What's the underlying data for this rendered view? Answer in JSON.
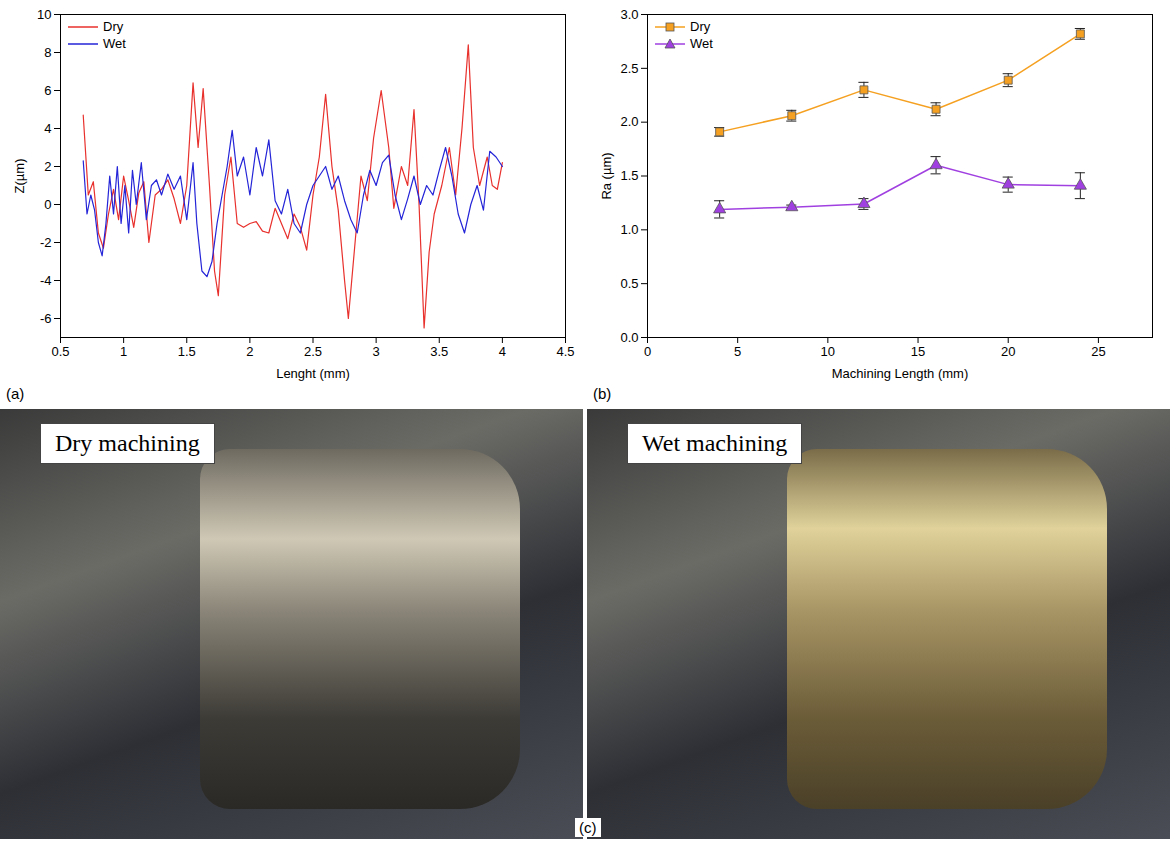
{
  "chart_data": [
    {
      "type": "line",
      "panel_label": "(a)",
      "x_label": "Lenght (mm)",
      "y_label": "Z(µm)",
      "xlim": [
        0.5,
        4.5
      ],
      "xticks": [
        0.5,
        1.0,
        1.5,
        2.0,
        2.5,
        3.0,
        3.5,
        4.0,
        4.5
      ],
      "ylim": [
        -7,
        10
      ],
      "yticks": [
        -6,
        -4,
        -2,
        0,
        2,
        4,
        6,
        8,
        10
      ],
      "grid": false,
      "legend": "top-left",
      "series": [
        {
          "name": "Dry",
          "color": "#e8302c",
          "x": [
            0.68,
            0.72,
            0.76,
            0.8,
            0.84,
            0.88,
            0.92,
            0.96,
            1.0,
            1.04,
            1.08,
            1.12,
            1.16,
            1.2,
            1.25,
            1.3,
            1.35,
            1.4,
            1.45,
            1.5,
            1.55,
            1.59,
            1.63,
            1.68,
            1.72,
            1.75,
            1.8,
            1.85,
            1.9,
            1.95,
            2.0,
            2.05,
            2.1,
            2.15,
            2.2,
            2.25,
            2.3,
            2.35,
            2.4,
            2.45,
            2.5,
            2.55,
            2.6,
            2.65,
            2.7,
            2.75,
            2.78,
            2.82,
            2.88,
            2.93,
            2.98,
            3.04,
            3.1,
            3.14,
            3.2,
            3.25,
            3.3,
            3.34,
            3.38,
            3.42,
            3.46,
            3.52,
            3.58,
            3.63,
            3.68,
            3.73,
            3.77,
            3.82,
            3.88,
            3.92,
            3.96,
            4.0
          ],
          "values": [
            4.7,
            0.5,
            1.2,
            -1.5,
            -2.3,
            -0.5,
            0.8,
            -0.8,
            1.5,
            0.2,
            -1.2,
            0.6,
            1.2,
            -2.0,
            0.5,
            0.8,
            1.3,
            0.3,
            -1.0,
            1.0,
            6.4,
            3.0,
            6.1,
            1.0,
            -3.5,
            -4.8,
            0.5,
            2.5,
            -1.0,
            -1.2,
            -1.0,
            -0.9,
            -1.4,
            -1.5,
            -0.2,
            -1.0,
            -1.8,
            -0.5,
            -1.2,
            -2.4,
            0.5,
            2.5,
            5.8,
            2.0,
            -0.3,
            -4.0,
            -6.0,
            -3.0,
            1.5,
            0.2,
            3.5,
            6.0,
            3.0,
            -0.2,
            2.0,
            1.0,
            5.0,
            0.0,
            -6.5,
            -2.5,
            -0.5,
            1.0,
            3.0,
            0.5,
            4.0,
            8.4,
            3.0,
            1.0,
            2.5,
            1.0,
            0.8,
            2.2
          ]
        },
        {
          "name": "Wet",
          "color": "#2424d8",
          "x": [
            0.68,
            0.71,
            0.74,
            0.77,
            0.8,
            0.83,
            0.86,
            0.89,
            0.92,
            0.95,
            0.98,
            1.01,
            1.04,
            1.07,
            1.1,
            1.14,
            1.18,
            1.22,
            1.26,
            1.3,
            1.35,
            1.4,
            1.45,
            1.5,
            1.55,
            1.58,
            1.62,
            1.66,
            1.7,
            1.74,
            1.78,
            1.82,
            1.86,
            1.9,
            1.95,
            2.0,
            2.05,
            2.1,
            2.15,
            2.2,
            2.25,
            2.3,
            2.35,
            2.4,
            2.45,
            2.5,
            2.55,
            2.6,
            2.65,
            2.7,
            2.75,
            2.8,
            2.85,
            2.9,
            2.95,
            3.0,
            3.05,
            3.1,
            3.15,
            3.2,
            3.25,
            3.3,
            3.35,
            3.4,
            3.45,
            3.5,
            3.55,
            3.6,
            3.65,
            3.7,
            3.75,
            3.8,
            3.85,
            3.9,
            3.95,
            4.0
          ],
          "values": [
            2.3,
            -0.5,
            0.5,
            -0.3,
            -2.0,
            -2.7,
            -1.0,
            1.5,
            -0.5,
            2.0,
            -1.0,
            1.0,
            -1.5,
            1.8,
            0.0,
            2.2,
            -0.8,
            1.0,
            1.3,
            0.5,
            1.6,
            0.8,
            1.5,
            -0.8,
            2.2,
            -1.0,
            -3.5,
            -3.8,
            -3.0,
            -1.0,
            0.5,
            2.0,
            3.9,
            1.5,
            2.5,
            0.5,
            3.0,
            1.5,
            3.4,
            0.2,
            -0.5,
            0.8,
            -1.0,
            -1.5,
            0.0,
            1.0,
            1.5,
            2.0,
            0.8,
            1.5,
            0.2,
            -0.8,
            -1.5,
            0.5,
            1.8,
            1.0,
            2.2,
            2.6,
            0.5,
            -0.8,
            0.3,
            1.5,
            0.0,
            1.0,
            0.5,
            1.8,
            3.0,
            1.5,
            -0.5,
            -1.5,
            0.0,
            1.0,
            -0.3,
            2.8,
            2.5,
            2.0
          ]
        }
      ]
    },
    {
      "type": "line",
      "panel_label": "(b)",
      "x_label": "Machining Length (mm)",
      "y_label": "Ra (µm)",
      "xlim": [
        0,
        28
      ],
      "xticks": [
        0,
        5,
        10,
        15,
        20,
        25
      ],
      "ylim": [
        0,
        3
      ],
      "yticks": [
        {
          "value": 0,
          "label": "0.0"
        },
        {
          "value": 0.5,
          "label": "0.5"
        },
        {
          "value": 1,
          "label": "1.0"
        },
        {
          "value": 1.5,
          "label": "1.5"
        },
        {
          "value": 2,
          "label": "2.0"
        },
        {
          "value": 2.5,
          "label": "2.5"
        },
        {
          "value": 3,
          "label": "3.0"
        }
      ],
      "grid": false,
      "legend": "top-left",
      "series": [
        {
          "name": "Dry",
          "color": "#f5a020",
          "marker": "square",
          "x": [
            4,
            8,
            12,
            16,
            20,
            24
          ],
          "values": [
            1.91,
            2.06,
            2.3,
            2.12,
            2.39,
            2.82
          ],
          "errors": [
            0.04,
            0.05,
            0.07,
            0.06,
            0.06,
            0.05
          ]
        },
        {
          "name": "Wet",
          "color": "#a040e0",
          "marker": "triangle",
          "x": [
            4,
            8,
            12,
            16,
            20,
            24
          ],
          "values": [
            1.19,
            1.21,
            1.24,
            1.6,
            1.42,
            1.41
          ],
          "errors": [
            0.08,
            0.02,
            0.05,
            0.08,
            0.07,
            0.12
          ]
        }
      ]
    }
  ],
  "panel_c": {
    "panel_label": "(c)",
    "photos": [
      "Dry machining",
      "Wet machining"
    ]
  }
}
